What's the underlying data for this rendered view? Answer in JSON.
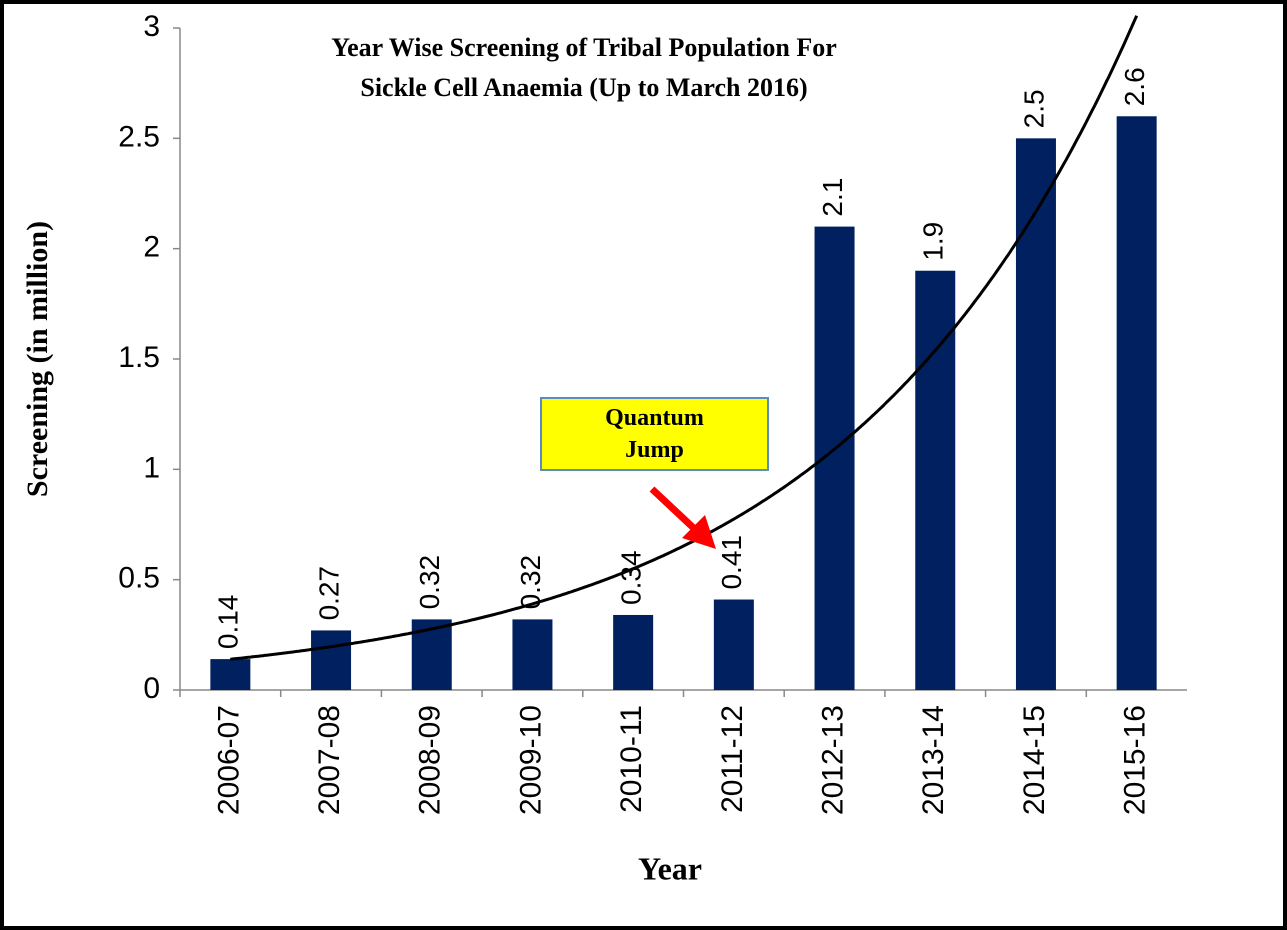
{
  "chart_data": {
    "type": "bar",
    "title": [
      "Year Wise Screening of Tribal Population For",
      "Sickle Cell Anaemia (Up to March 2016)"
    ],
    "x_label": "Year",
    "y_label": "Screening (in million)",
    "categories": [
      "2006-07",
      "2007-08",
      "2008-09",
      "2009-10",
      "2010-11",
      "2011-12",
      "2012-13",
      "2013-14",
      "2014-15",
      "2015-16"
    ],
    "values": [
      0.14,
      0.27,
      0.32,
      0.32,
      0.34,
      0.41,
      2.1,
      1.9,
      2.5,
      2.6
    ],
    "color": "#002060",
    "trendline": "exponential",
    "ylim": [
      0,
      3
    ],
    "yticks": [
      0,
      0.5,
      1,
      1.5,
      2,
      2.5,
      3
    ],
    "grid": false,
    "annotation": "Quantum Jump"
  }
}
